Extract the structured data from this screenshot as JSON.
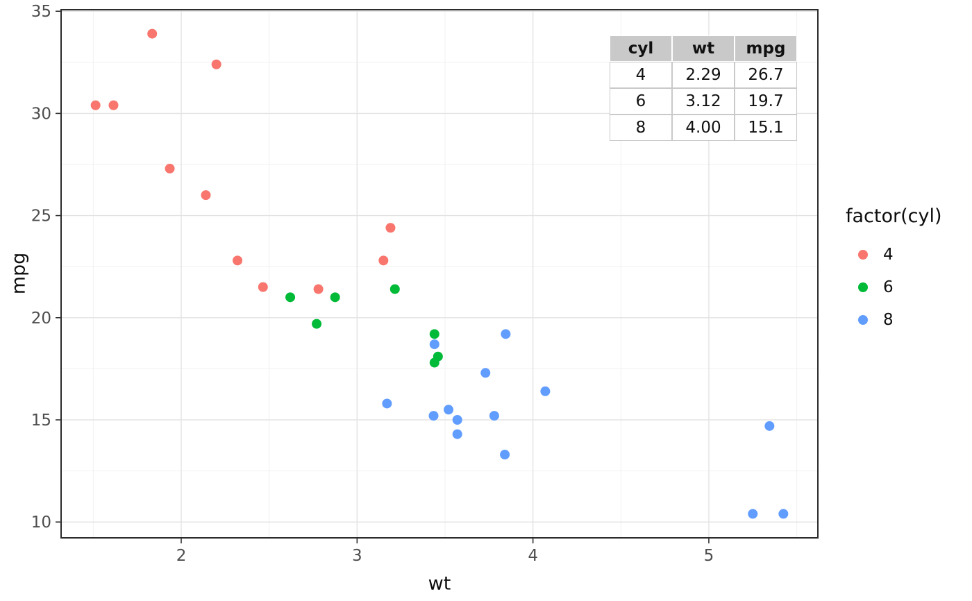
{
  "chart_data": {
    "type": "scatter",
    "title": "",
    "xlabel": "wt",
    "ylabel": "mpg",
    "xlim": [
      1.317,
      5.62
    ],
    "ylim": [
      9.225,
      35.075
    ],
    "x_ticks": [
      2,
      3,
      4,
      5
    ],
    "y_ticks": [
      10,
      15,
      20,
      25,
      30,
      35
    ],
    "x_minor_ticks": [
      1.5,
      2.5,
      3.5,
      4.5,
      5.5
    ],
    "y_minor_ticks": [
      12.5,
      17.5,
      22.5,
      27.5,
      32.5
    ],
    "grid": true,
    "panel_background": "#ffffff",
    "panel_border_color": "#2b2b2b",
    "major_grid_color": "#e3e3e3",
    "minor_grid_color": "#f1f1f1",
    "tick_label_color": "#4d4d4d",
    "legend_position": "right",
    "legend_title": "factor(cyl)",
    "point_radius": 7,
    "series": [
      {
        "name": "4",
        "color": "#F8766D",
        "points": [
          [
            2.32,
            22.8
          ],
          [
            3.19,
            24.4
          ],
          [
            3.15,
            22.8
          ],
          [
            2.2,
            32.4
          ],
          [
            1.615,
            30.4
          ],
          [
            1.835,
            33.9
          ],
          [
            2.465,
            21.5
          ],
          [
            1.935,
            27.3
          ],
          [
            2.14,
            26.0
          ],
          [
            1.513,
            30.4
          ],
          [
            2.78,
            21.4
          ]
        ]
      },
      {
        "name": "6",
        "color": "#00BA38",
        "points": [
          [
            2.62,
            21.0
          ],
          [
            2.875,
            21.0
          ],
          [
            3.215,
            21.4
          ],
          [
            3.46,
            18.1
          ],
          [
            3.44,
            19.2
          ],
          [
            3.44,
            17.8
          ],
          [
            2.77,
            19.7
          ]
        ]
      },
      {
        "name": "8",
        "color": "#619CFF",
        "points": [
          [
            3.44,
            18.7
          ],
          [
            3.57,
            14.3
          ],
          [
            4.07,
            16.4
          ],
          [
            3.73,
            17.3
          ],
          [
            3.78,
            15.2
          ],
          [
            5.25,
            10.4
          ],
          [
            5.424,
            10.4
          ],
          [
            5.345,
            14.7
          ],
          [
            3.52,
            15.5
          ],
          [
            3.435,
            15.2
          ],
          [
            3.84,
            13.3
          ],
          [
            3.845,
            19.2
          ],
          [
            3.17,
            15.8
          ],
          [
            3.57,
            15.0
          ]
        ]
      }
    ]
  },
  "inset_table": {
    "headers": [
      "cyl",
      "wt",
      "mpg"
    ],
    "rows": [
      [
        "4",
        "2.29",
        "26.7"
      ],
      [
        "6",
        "3.12",
        "19.7"
      ],
      [
        "8",
        "4.00",
        "15.1"
      ]
    ]
  }
}
